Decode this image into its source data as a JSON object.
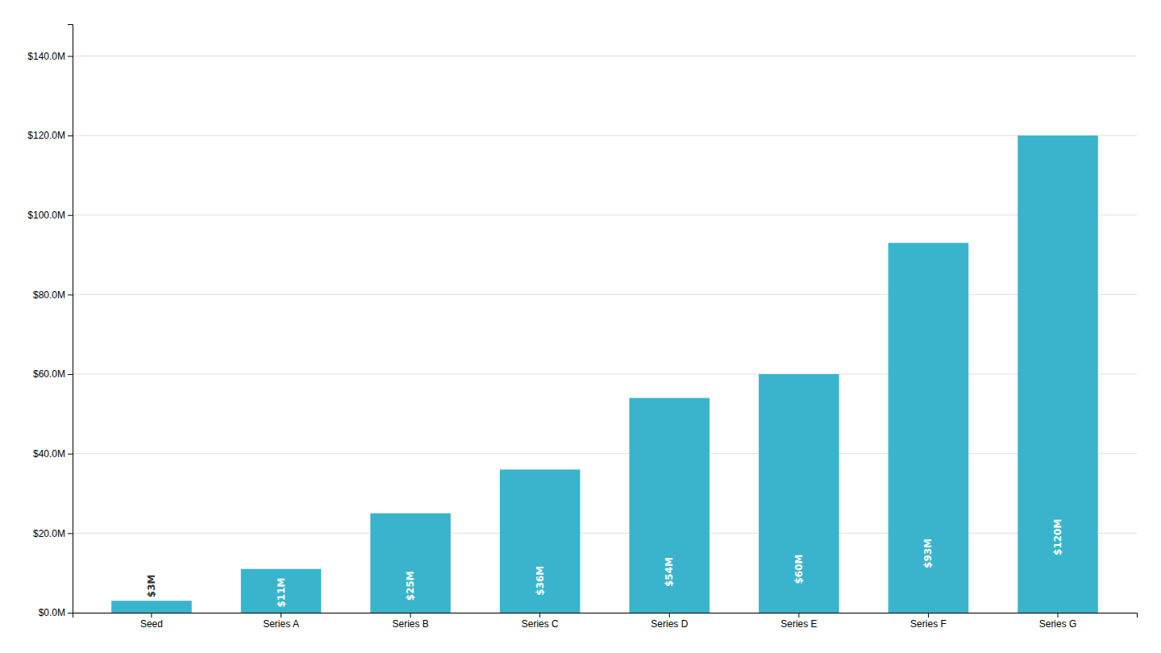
{
  "chart_data": {
    "type": "bar",
    "categories": [
      "Seed",
      "Series A",
      "Series B",
      "Series C",
      "Series D",
      "Series E",
      "Series F",
      "Series G"
    ],
    "values": [
      3,
      11,
      25,
      36,
      54,
      60,
      93,
      120
    ],
    "value_labels": [
      "$3M",
      "$11M",
      "$25M",
      "$36M",
      "$54M",
      "$60M",
      "$93M",
      "$120M"
    ],
    "data_labels": true,
    "color": "#39B4CC",
    "ylim": [
      0,
      148
    ],
    "yticks": [
      {
        "value": 0,
        "label": "$0.0M"
      },
      {
        "value": 20,
        "label": "$20.0M"
      },
      {
        "value": 40,
        "label": "$40.0M"
      },
      {
        "value": 60,
        "label": "$60.0M"
      },
      {
        "value": 80,
        "label": "$80.0M"
      },
      {
        "value": 100,
        "label": "$100.0M"
      },
      {
        "value": 120,
        "label": "$120.0M"
      },
      {
        "value": 140,
        "label": "$140.0M"
      }
    ],
    "grid": true
  }
}
